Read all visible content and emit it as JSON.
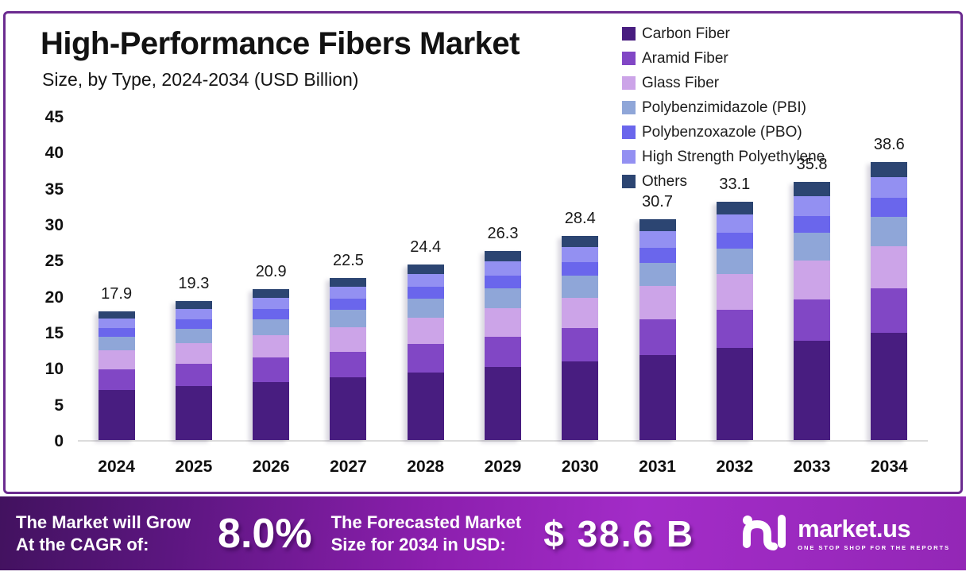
{
  "frame": {
    "border_color": "#6B2B8F"
  },
  "header": {
    "title": "High-Performance Fibers Market",
    "subtitle": "Size, by Type, 2024-2034 (USD Billion)"
  },
  "chart_data": {
    "type": "bar",
    "stacked": true,
    "title": "High-Performance Fibers Market Size, by Type, 2024-2034 (USD Billion)",
    "categories": [
      "2024",
      "2025",
      "2026",
      "2027",
      "2028",
      "2029",
      "2030",
      "2031",
      "2032",
      "2033",
      "2034"
    ],
    "totals": [
      "17.9",
      "19.3",
      "20.9",
      "22.5",
      "24.4",
      "26.3",
      "28.4",
      "30.7",
      "33.1",
      "35.8",
      "38.6"
    ],
    "series": [
      {
        "name": "Carbon Fiber",
        "color": "#481D80",
        "values": [
          6.91,
          7.45,
          8.07,
          8.69,
          9.42,
          10.15,
          10.96,
          11.85,
          12.78,
          13.82,
          14.9
        ]
      },
      {
        "name": "Aramid Fiber",
        "color": "#8147C5",
        "values": [
          2.87,
          3.1,
          3.36,
          3.61,
          3.92,
          4.22,
          4.56,
          4.93,
          5.32,
          5.75,
          6.2
        ]
      },
      {
        "name": "Glass Fiber",
        "color": "#CCA4E8",
        "values": [
          2.69,
          2.9,
          3.14,
          3.38,
          3.67,
          3.95,
          4.27,
          4.61,
          4.97,
          5.38,
          5.8
        ]
      },
      {
        "name": "Polybenzimidazole (PBI)",
        "color": "#8FA6D8",
        "values": [
          1.9,
          2.05,
          2.22,
          2.39,
          2.59,
          2.79,
          3.02,
          3.26,
          3.52,
          3.8,
          4.1
        ]
      },
      {
        "name": "Polybenzoxazole (PBO)",
        "color": "#6A66EC",
        "values": [
          1.21,
          1.3,
          1.41,
          1.52,
          1.64,
          1.77,
          1.91,
          2.07,
          2.23,
          2.41,
          2.6
        ]
      },
      {
        "name": "High Strength Polyethylene",
        "color": "#9390F2",
        "values": [
          1.34,
          1.45,
          1.57,
          1.69,
          1.83,
          1.98,
          2.13,
          2.31,
          2.49,
          2.69,
          2.9
        ]
      },
      {
        "name": "Others",
        "color": "#2C4572",
        "values": [
          0.97,
          1.05,
          1.14,
          1.22,
          1.33,
          1.43,
          1.55,
          1.67,
          1.8,
          1.95,
          2.1
        ]
      }
    ],
    "ylabel": "",
    "xlabel": "",
    "ylim": [
      0,
      45
    ],
    "yticks": [
      0,
      5,
      10,
      15,
      20,
      25,
      30,
      35,
      40,
      45
    ],
    "legend_position": "top-right",
    "grid": "baseline-only"
  },
  "banner": {
    "cagr_label_line1": "The Market will Grow",
    "cagr_label_line2": "At the CAGR of:",
    "cagr_value": "8.0%",
    "forecast_label_line1": "The Forecasted Market",
    "forecast_label_line2": "Size for 2034 in USD:",
    "forecast_value": "$ 38.6 B",
    "logo_text": "market.us",
    "logo_tagline": "ONE STOP SHOP FOR THE REPORTS",
    "gradient_start": "#42125F",
    "gradient_end": "#A32CC8"
  }
}
